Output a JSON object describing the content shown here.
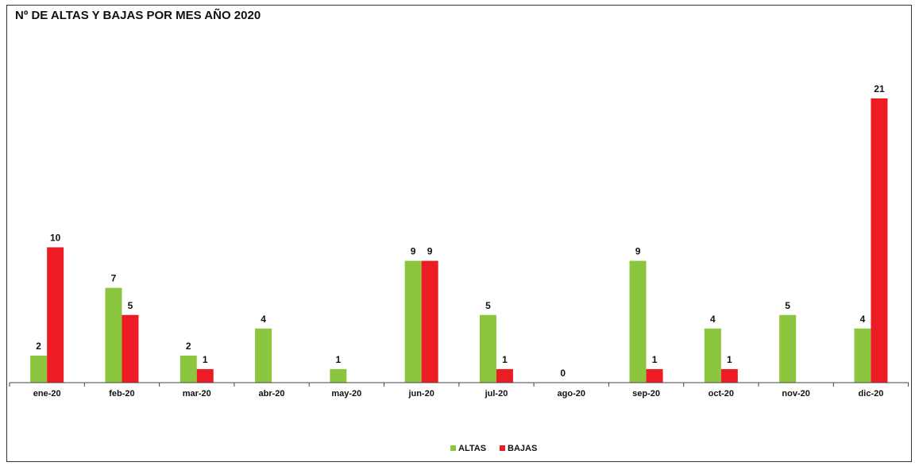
{
  "chart_data": {
    "type": "bar",
    "title": "Nº DE ALTAS Y BAJAS POR MES AÑO 2020",
    "xlabel": "",
    "ylabel": "",
    "categories": [
      "ene-20",
      "feb-20",
      "mar-20",
      "abr-20",
      "may-20",
      "jun-20",
      "jul-20",
      "ago-20",
      "sep-20",
      "oct-20",
      "nov-20",
      "dic-20"
    ],
    "series": [
      {
        "name": "ALTAS",
        "color": "#8cc63f",
        "values": [
          2,
          7,
          2,
          4,
          1,
          9,
          5,
          0,
          9,
          4,
          5,
          4
        ]
      },
      {
        "name": "BAJAS",
        "color": "#ed1c24",
        "values": [
          10,
          5,
          1,
          null,
          null,
          9,
          1,
          null,
          1,
          1,
          null,
          21
        ]
      }
    ],
    "ylim": [
      0,
      22
    ],
    "grid": false,
    "legend": "bottom-center"
  }
}
